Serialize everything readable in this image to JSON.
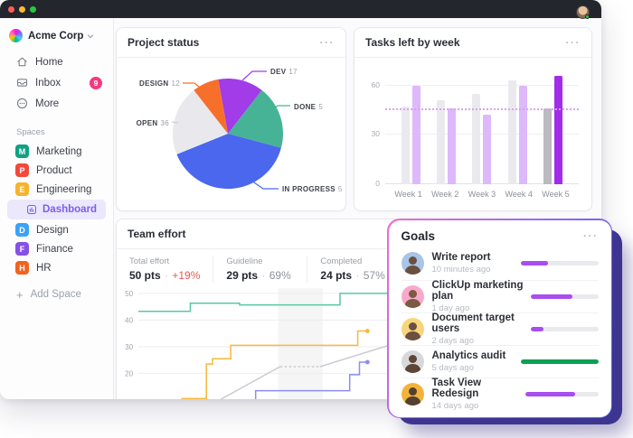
{
  "window": {
    "traffic_lights": [
      "#ff5f57",
      "#febc2e",
      "#28c840"
    ],
    "user": {
      "status_color": "#2ecc40"
    }
  },
  "sidebar": {
    "workspace": {
      "name": "Acme Corp"
    },
    "nav": [
      {
        "label": "Home"
      },
      {
        "label": "Inbox",
        "badge": "9"
      },
      {
        "label": "More"
      }
    ],
    "spaces_label": "Spaces",
    "spaces": [
      {
        "initial": "M",
        "label": "Marketing",
        "color": "#10a182"
      },
      {
        "initial": "P",
        "label": "Product",
        "color": "#f4483a"
      },
      {
        "initial": "E",
        "label": "Engineering",
        "color": "#f7b32b"
      },
      {
        "initial": "D",
        "label": "Design",
        "color": "#3aa2f7"
      },
      {
        "initial": "F",
        "label": "Finance",
        "color": "#8550e8"
      },
      {
        "initial": "H",
        "label": "HR",
        "color": "#f5611d"
      }
    ],
    "active_item": {
      "label": "Dashboard"
    },
    "add_space": {
      "plus": "+",
      "label": "Add Space"
    }
  },
  "cards": {
    "project_status": {
      "title": "Project status",
      "menu": "···"
    },
    "tasks_left": {
      "title": "Tasks left by week",
      "menu": "···"
    },
    "team_effort": {
      "title": "Team effort",
      "menu": "···",
      "stats": [
        {
          "label": "Total effort",
          "value": "50 pts",
          "sep": "·",
          "delta": "+19%",
          "delta_color": "#ea5a4f"
        },
        {
          "label": "Guideline",
          "value": "29 pts",
          "sep": "·",
          "delta": "69%",
          "delta_color": "#8d929b"
        },
        {
          "label": "Completed",
          "value": "24 pts",
          "sep": "·",
          "delta": "57%",
          "delta_color": "#8d929b"
        }
      ]
    },
    "goals": {
      "title": "Goals",
      "menu": "···",
      "items": [
        {
          "name": "Write report",
          "time": "10 minutes ago",
          "progress": 36,
          "bar_color": "#a84df0",
          "avatar_bg": "#a8c4e6",
          "avatar_fg": "#6b4f3f"
        },
        {
          "name": "ClickUp marketing plan",
          "time": "1 day ago",
          "progress": 61,
          "bar_color": "#a84df0",
          "avatar_bg": "#f8a9c9",
          "avatar_fg": "#7c5a43"
        },
        {
          "name": "Document target users",
          "time": "2 days ago",
          "progress": 19,
          "bar_color": "#a84df0",
          "avatar_bg": "#f7d57e",
          "avatar_fg": "#6b4f3f"
        },
        {
          "name": "Analytics audit",
          "time": "5 days ago",
          "progress": 100,
          "bar_color": "#0ba057",
          "avatar_bg": "#d8d8dc",
          "avatar_fg": "#5d4636"
        },
        {
          "name": "Task View Redesign",
          "time": "14 days ago",
          "progress": 69,
          "bar_color": "#a84df0",
          "avatar_bg": "#f2b33a",
          "avatar_fg": "#54402f"
        }
      ]
    }
  },
  "chart_data": [
    {
      "type": "pie",
      "title": "Project status",
      "start_deg": -10,
      "slices": [
        {
          "label": "DEV",
          "value": 17,
          "color": "#a23be8",
          "sweep_deg": 48
        },
        {
          "label": "DONE",
          "value": 5,
          "color": "#47b396",
          "sweep_deg": 67
        },
        {
          "label": "IN PROGRESS",
          "value": 5,
          "color": "#4a67ee",
          "sweep_deg": 143
        },
        {
          "label": "OPEN",
          "value": 36,
          "color": "#e9e9ed",
          "sweep_deg": 74
        },
        {
          "label": "DESIGN",
          "value": 12,
          "color": "#f6702c",
          "sweep_deg": 28
        }
      ]
    },
    {
      "type": "bar",
      "title": "Tasks left by week",
      "categories": [
        "Week 1",
        "Week 2",
        "Week 3",
        "Week 4",
        "Week 5"
      ],
      "series": [
        {
          "name": "baseline",
          "values": [
            47,
            51,
            55,
            63,
            46
          ],
          "colors": [
            "#eaeaee",
            "#eaeaee",
            "#eaeaee",
            "#eaeaee",
            "#bbbac1"
          ]
        },
        {
          "name": "tasks-left",
          "values": [
            60,
            46,
            42,
            60,
            66
          ],
          "colors": [
            "#ddb8fa",
            "#ddb8fa",
            "#ddb8fa",
            "#ddb8fa",
            "#a22ceb"
          ]
        }
      ],
      "yticks": [
        0,
        30,
        60
      ],
      "ymax": 68,
      "guideline": {
        "value": 45,
        "color": "#d9a2f5",
        "style": "dotted"
      }
    },
    {
      "type": "line",
      "title": "Team effort",
      "yticks": [
        20,
        30,
        40,
        50
      ],
      "y_range": [
        8,
        52
      ],
      "band_x": [
        31.5,
        41.5
      ],
      "series": [
        {
          "name": "scope",
          "color": "#57c7a4",
          "points": [
            [
              0,
              43.3
            ],
            [
              11.7,
              43.3
            ],
            [
              11.7,
              46.3
            ],
            [
              22.8,
              46.3
            ],
            [
              22.8,
              45.7
            ],
            [
              45.4,
              45.7
            ],
            [
              45.4,
              50
            ],
            [
              60,
              50
            ]
          ]
        },
        {
          "name": "total-effort",
          "color": "#f8b83a",
          "dot": true,
          "points": [
            [
              9.7,
              10.5
            ],
            [
              15.3,
              10.5
            ],
            [
              15.3,
              23.5
            ],
            [
              16.7,
              23.5
            ],
            [
              16.7,
              25.5
            ],
            [
              20.8,
              25.5
            ],
            [
              20.8,
              30.5
            ],
            [
              49.4,
              30.5
            ],
            [
              49.4,
              35.9
            ],
            [
              51.6,
              35.9
            ]
          ]
        },
        {
          "name": "guideline-rise",
          "color": "#cbcbd1",
          "points": [
            [
              16.1,
              8
            ],
            [
              31.9,
              22.5
            ]
          ]
        },
        {
          "name": "guideline-pause",
          "color": "#cbcbd1",
          "dash": true,
          "points": [
            [
              31.9,
              22.5
            ],
            [
              40.9,
              22.5
            ]
          ]
        },
        {
          "name": "guideline-rise2",
          "color": "#cbcbd1",
          "points": [
            [
              40.9,
              22.5
            ],
            [
              56,
              30.3
            ],
            [
              60,
              30.5
            ]
          ]
        },
        {
          "name": "completed",
          "color": "#8b8df0",
          "dot": true,
          "points": [
            [
              26.4,
              8
            ],
            [
              26.4,
              13.5
            ],
            [
              47.6,
              13.5
            ],
            [
              47.6,
              19.5
            ],
            [
              49.8,
              19.5
            ],
            [
              49.8,
              24.2
            ],
            [
              51.6,
              24.2
            ]
          ]
        }
      ]
    }
  ]
}
